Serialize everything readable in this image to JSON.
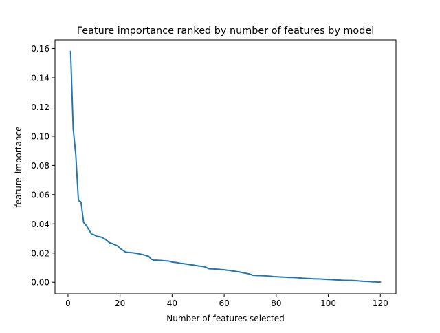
{
  "chart_data": {
    "type": "line",
    "title": "Feature importance ranked by number of features by model",
    "xlabel": "Number of features selected",
    "ylabel": "feature_importance",
    "xlim": [
      -5,
      126
    ],
    "ylim": [
      -0.0079,
      0.1659
    ],
    "xticks": [
      0,
      20,
      40,
      60,
      80,
      100,
      120
    ],
    "yticks": [
      0.0,
      0.02,
      0.04,
      0.06,
      0.08,
      0.1,
      0.12,
      0.14,
      0.16
    ],
    "xtick_labels": [
      "0",
      "20",
      "40",
      "60",
      "80",
      "100",
      "120"
    ],
    "ytick_labels": [
      "0.00",
      "0.02",
      "0.04",
      "0.06",
      "0.08",
      "0.10",
      "0.12",
      "0.14",
      "0.16"
    ],
    "grid": false,
    "line_color": "#1f77b4",
    "series": [
      {
        "x": [
          1,
          2,
          3,
          4,
          5,
          6,
          7,
          8,
          9,
          10,
          11,
          12,
          13,
          14,
          15,
          16,
          17,
          18,
          19,
          20,
          21,
          22,
          23,
          24,
          25,
          26,
          27,
          28,
          29,
          30,
          31,
          32,
          33,
          34,
          35,
          36,
          37,
          38,
          39,
          40,
          41,
          42,
          43,
          44,
          45,
          46,
          47,
          48,
          49,
          50,
          51,
          52,
          53,
          54,
          55,
          56,
          57,
          58,
          59,
          60,
          61,
          62,
          63,
          64,
          65,
          66,
          67,
          68,
          69,
          70,
          71,
          72,
          73,
          74,
          75,
          76,
          77,
          78,
          79,
          80,
          81,
          82,
          83,
          84,
          85,
          86,
          87,
          88,
          89,
          90,
          91,
          92,
          93,
          94,
          95,
          96,
          97,
          98,
          99,
          100,
          101,
          102,
          103,
          104,
          105,
          106,
          107,
          108,
          109,
          110,
          111,
          112,
          113,
          114,
          115,
          116,
          117,
          118,
          119,
          120
        ],
        "values": [
          0.158,
          0.105,
          0.087,
          0.056,
          0.055,
          0.041,
          0.039,
          0.036,
          0.033,
          0.0325,
          0.0315,
          0.0312,
          0.0308,
          0.0298,
          0.0285,
          0.027,
          0.0265,
          0.0257,
          0.025,
          0.0232,
          0.022,
          0.0208,
          0.0204,
          0.0203,
          0.0202,
          0.0199,
          0.0196,
          0.0192,
          0.0188,
          0.0183,
          0.0178,
          0.0158,
          0.0151,
          0.0151,
          0.015,
          0.0149,
          0.0147,
          0.0146,
          0.0144,
          0.0138,
          0.0136,
          0.0134,
          0.013,
          0.0128,
          0.0126,
          0.0123,
          0.012,
          0.0118,
          0.0115,
          0.0112,
          0.011,
          0.0108,
          0.0103,
          0.0093,
          0.0092,
          0.0091,
          0.009,
          0.0089,
          0.0087,
          0.0086,
          0.0083,
          0.0081,
          0.0078,
          0.0076,
          0.0073,
          0.007,
          0.0066,
          0.0063,
          0.0059,
          0.0055,
          0.0048,
          0.0047,
          0.0046,
          0.0046,
          0.0045,
          0.0044,
          0.0042,
          0.0041,
          0.0039,
          0.0038,
          0.0037,
          0.0036,
          0.0035,
          0.0034,
          0.0033,
          0.0033,
          0.0032,
          0.0031,
          0.003,
          0.0028,
          0.0027,
          0.0026,
          0.0025,
          0.0024,
          0.0023,
          0.0023,
          0.0022,
          0.0021,
          0.002,
          0.0019,
          0.0018,
          0.0017,
          0.0016,
          0.0015,
          0.0014,
          0.0013,
          0.0013,
          0.0012,
          0.0012,
          0.0011,
          0.001,
          0.0008,
          0.0007,
          0.0006,
          0.0005,
          0.0004,
          0.0003,
          0.0002,
          0.0001,
          5e-05
        ]
      }
    ]
  }
}
